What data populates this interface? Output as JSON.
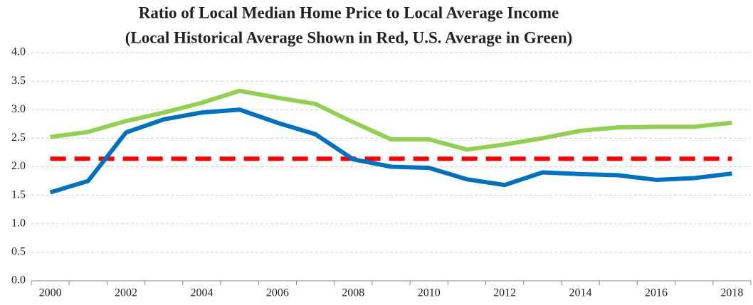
{
  "chart_data": {
    "type": "line",
    "title": "Ratio of Local Median Home Price to Local Average Income",
    "subtitle": "(Local Historical Average Shown in Red, U.S. Average in Green)",
    "categories": [
      "2000",
      null,
      "2002",
      null,
      "2004",
      null,
      "2006",
      null,
      "2008",
      null,
      "2010",
      null,
      "2012",
      null,
      "2014",
      null,
      "2016",
      null,
      "2018"
    ],
    "series": [
      {
        "color": "#92d050",
        "dashed": false,
        "values": [
          2.52,
          2.61,
          2.8,
          2.95,
          3.12,
          3.33,
          3.21,
          3.1,
          2.78,
          2.48,
          2.48,
          2.3,
          2.39,
          2.5,
          2.63,
          2.69,
          2.7,
          2.7,
          2.77
        ]
      },
      {
        "color": "#ff0000",
        "dashed": true,
        "values": [
          2.14,
          2.14,
          2.14,
          2.14,
          2.14,
          2.14,
          2.14,
          2.14,
          2.14,
          2.14,
          2.14,
          2.14,
          2.14,
          2.14,
          2.14,
          2.14,
          2.14,
          2.14,
          2.14
        ]
      },
      {
        "color": "#0070c0",
        "dashed": false,
        "values": [
          1.55,
          1.75,
          2.6,
          2.83,
          2.95,
          3.0,
          2.77,
          2.57,
          2.13,
          2.0,
          1.98,
          1.78,
          1.68,
          1.9,
          1.87,
          1.85,
          1.77,
          1.8,
          1.88
        ]
      }
    ],
    "ylim": [
      0,
      4
    ],
    "yticks": [
      {
        "value": 0,
        "label": "0.0"
      },
      0.5,
      {
        "value": 1,
        "label": "1.0"
      },
      1.5,
      {
        "value": 2,
        "label": "2.0"
      },
      2.5,
      {
        "value": 3,
        "label": "3.0"
      },
      3.5,
      {
        "value": 4,
        "label": "4.0"
      }
    ],
    "grid": true
  }
}
